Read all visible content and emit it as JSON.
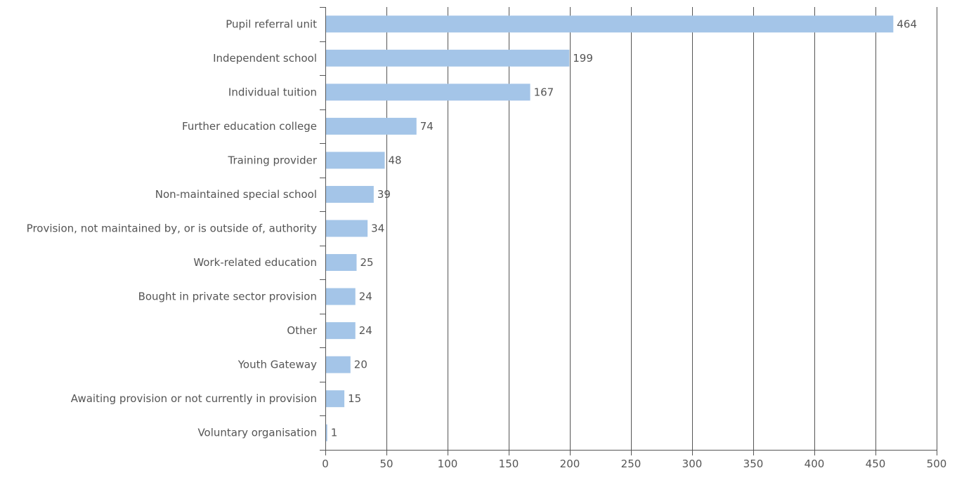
{
  "chart_data": {
    "type": "bar",
    "orientation": "horizontal",
    "title": "",
    "xlabel": "",
    "ylabel": "",
    "categories": [
      "Pupil referral unit",
      "Independent school",
      "Individual tuition",
      "Further education college",
      "Training provider",
      "Non-maintained special school",
      "Provision, not maintained by, or is outside of, authority",
      "Work-related education",
      "Bought in private sector provision",
      "Other",
      "Youth Gateway",
      "Awaiting provision or not currently in provision",
      "Voluntary organisation"
    ],
    "values": [
      464,
      199,
      167,
      74,
      48,
      39,
      34,
      25,
      24,
      24,
      20,
      15,
      1
    ],
    "xlim": [
      0,
      500
    ],
    "xticks": [
      0,
      50,
      100,
      150,
      200,
      250,
      300,
      350,
      400,
      450,
      500
    ],
    "grid": "vertical",
    "legend": "none",
    "data_labels": true,
    "bar_color": "#a4c5e8",
    "grid_color": "#555555"
  }
}
